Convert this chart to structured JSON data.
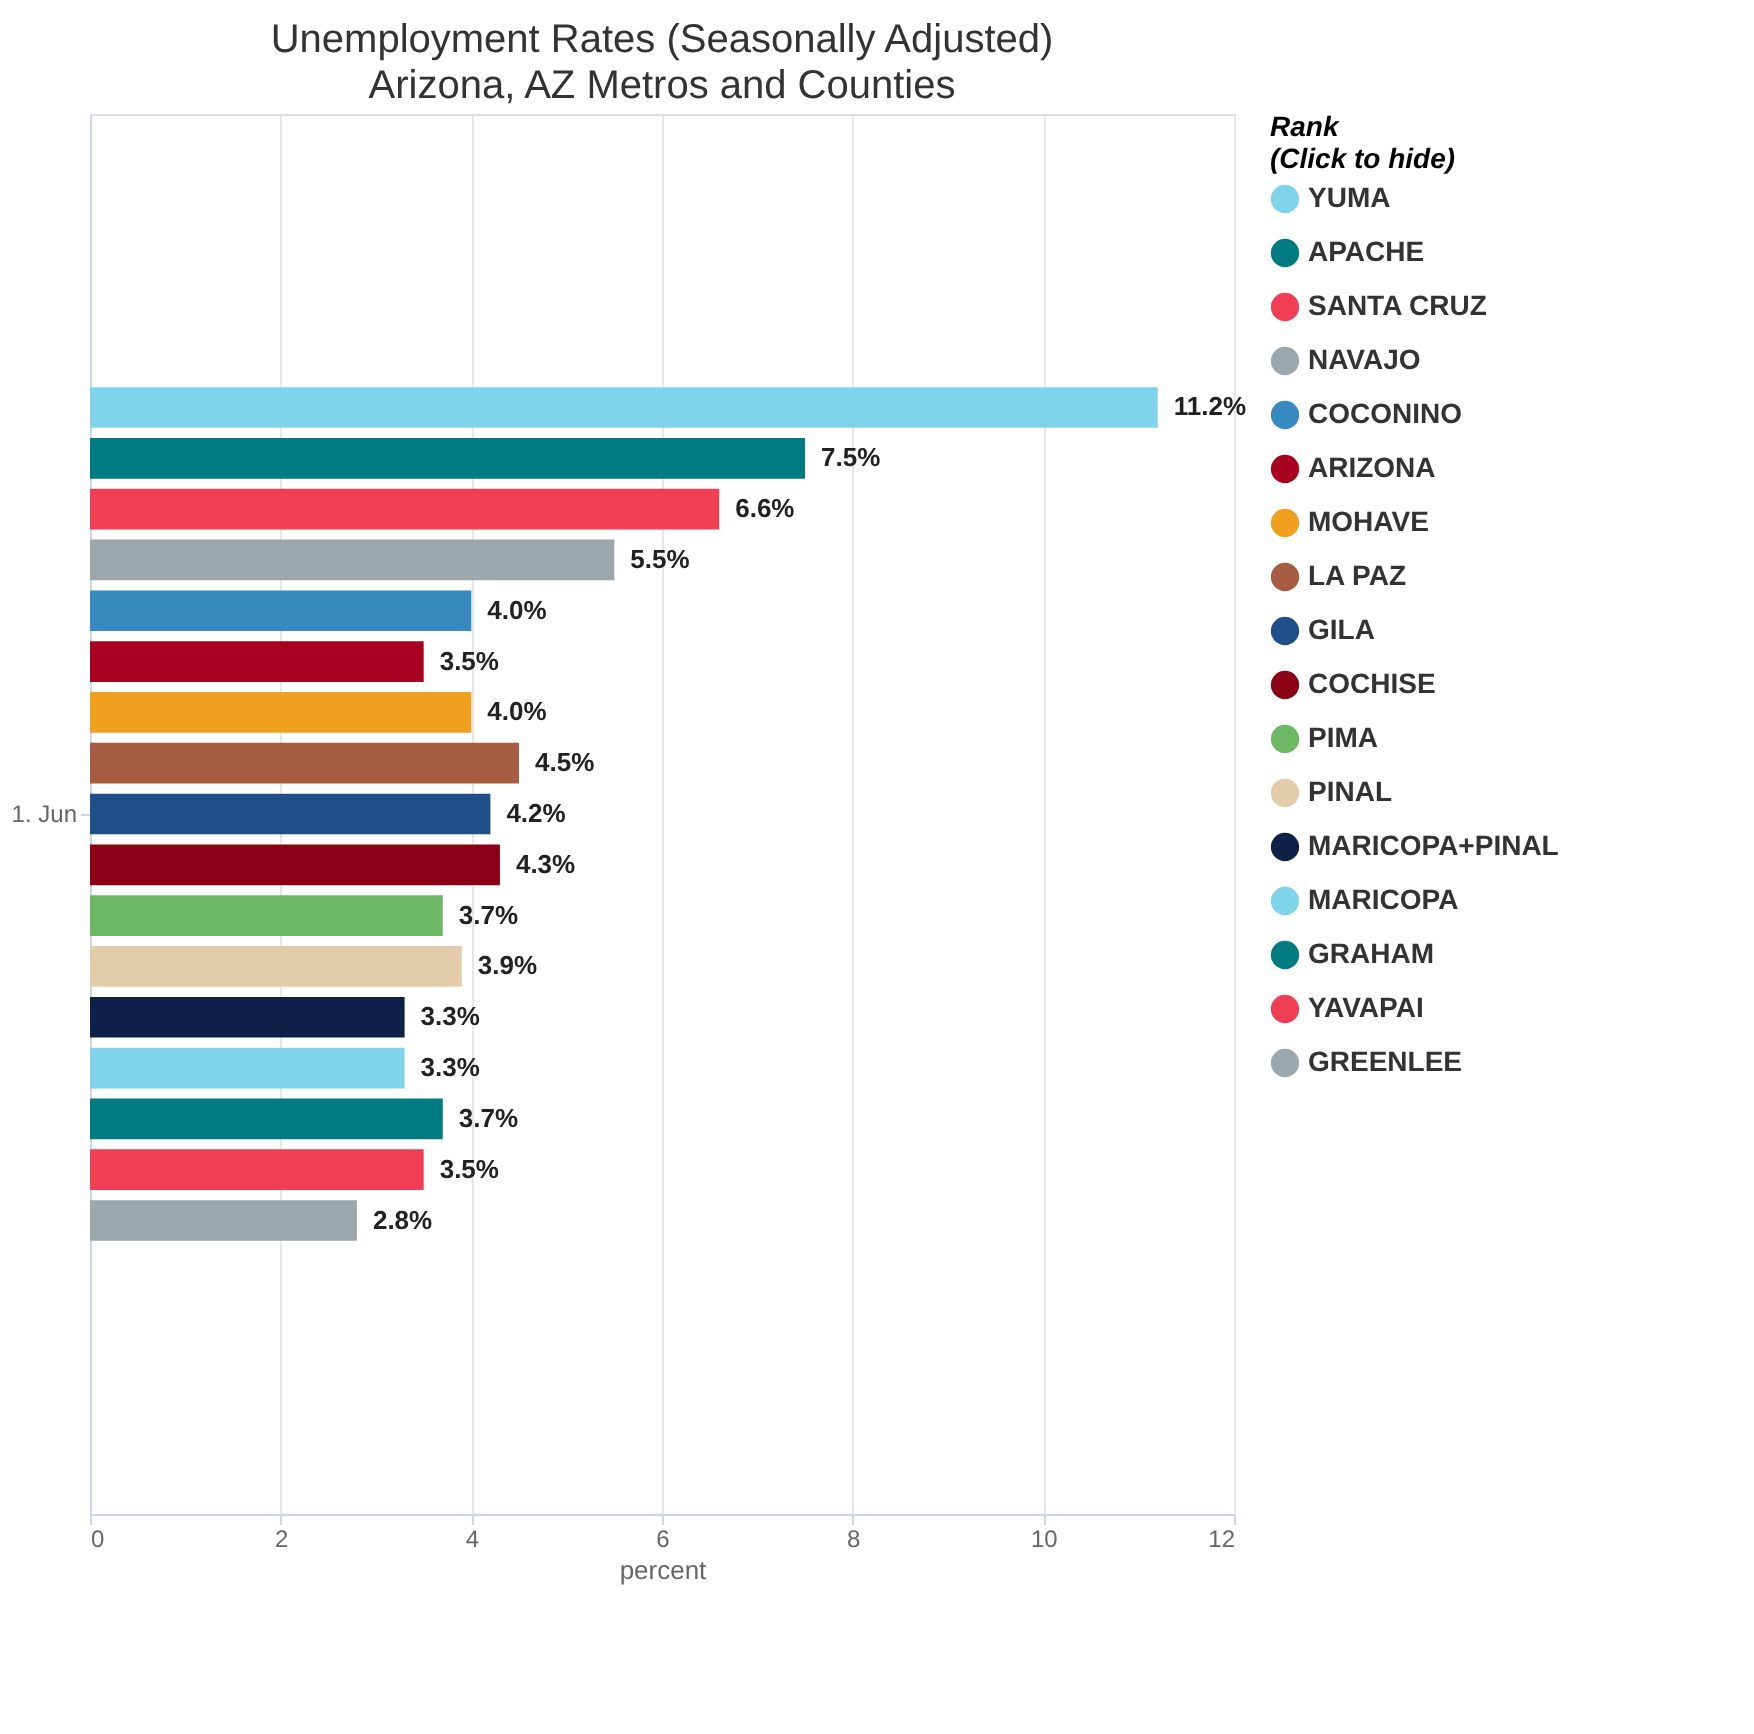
{
  "chart_data": {
    "type": "bar",
    "orientation": "horizontal",
    "title": "Unemployment Rates (Seasonally Adjusted)",
    "subtitle": "Arizona, AZ Metros and Counties",
    "xlabel": "percent",
    "legend_title": "Rank",
    "annotations": [
      "(Click to hide)"
    ],
    "categories": [
      "1. Jun"
    ],
    "series": [
      {
        "name": "YUMA",
        "color": "#7fd3ea",
        "values": [
          11.2
        ],
        "value_labels": [
          "11.2%"
        ]
      },
      {
        "name": "APACHE",
        "color": "#007b82",
        "values": [
          7.5
        ],
        "value_labels": [
          "7.5%"
        ]
      },
      {
        "name": "SANTA CRUZ",
        "color": "#f03e55",
        "values": [
          6.6
        ],
        "value_labels": [
          "6.6%"
        ]
      },
      {
        "name": "NAVAJO",
        "color": "#9ba8ab",
        "values": [
          5.5
        ],
        "value_labels": [
          "5.5%"
        ]
      },
      {
        "name": "COCONINO",
        "color": "#378ac0",
        "values": [
          4.0
        ],
        "value_labels": [
          "4.0%"
        ]
      },
      {
        "name": "ARIZONA",
        "color": "#a8001f",
        "values": [
          3.5
        ],
        "value_labels": [
          "3.5%"
        ]
      },
      {
        "name": "MOHAVE",
        "color": "#f0a020",
        "values": [
          4.0
        ],
        "value_labels": [
          "4.0%"
        ]
      },
      {
        "name": "LA PAZ",
        "color": "#a55c40",
        "values": [
          4.5
        ],
        "value_labels": [
          "4.5%"
        ]
      },
      {
        "name": "GILA",
        "color": "#1f4f88",
        "values": [
          4.2
        ],
        "value_labels": [
          "4.2%"
        ]
      },
      {
        "name": "COCHISE",
        "color": "#8a0015",
        "values": [
          4.3
        ],
        "value_labels": [
          "4.3%"
        ]
      },
      {
        "name": "PIMA",
        "color": "#6db864",
        "values": [
          3.7
        ],
        "value_labels": [
          "3.7%"
        ]
      },
      {
        "name": "PINAL",
        "color": "#e4cbaa",
        "values": [
          3.9
        ],
        "value_labels": [
          "3.9%"
        ]
      },
      {
        "name": "MARICOPA+PINAL",
        "color": "#0d2149",
        "values": [
          3.3
        ],
        "value_labels": [
          "3.3%"
        ]
      },
      {
        "name": "MARICOPA",
        "color": "#7fd3ea",
        "values": [
          3.3
        ],
        "value_labels": [
          "3.3%"
        ]
      },
      {
        "name": "GRAHAM",
        "color": "#007b82",
        "values": [
          3.7
        ],
        "value_labels": [
          "3.7%"
        ]
      },
      {
        "name": "YAVAPAI",
        "color": "#f03e55",
        "values": [
          3.5
        ],
        "value_labels": [
          "3.5%"
        ]
      },
      {
        "name": "GREENLEE",
        "color": "#9ba8ab",
        "values": [
          2.8
        ],
        "value_labels": [
          "2.8%"
        ]
      }
    ],
    "xlim": [
      0,
      12
    ],
    "xticks": [
      0,
      2,
      4,
      6,
      8,
      10,
      12
    ],
    "grid": "x",
    "legend": "right"
  }
}
